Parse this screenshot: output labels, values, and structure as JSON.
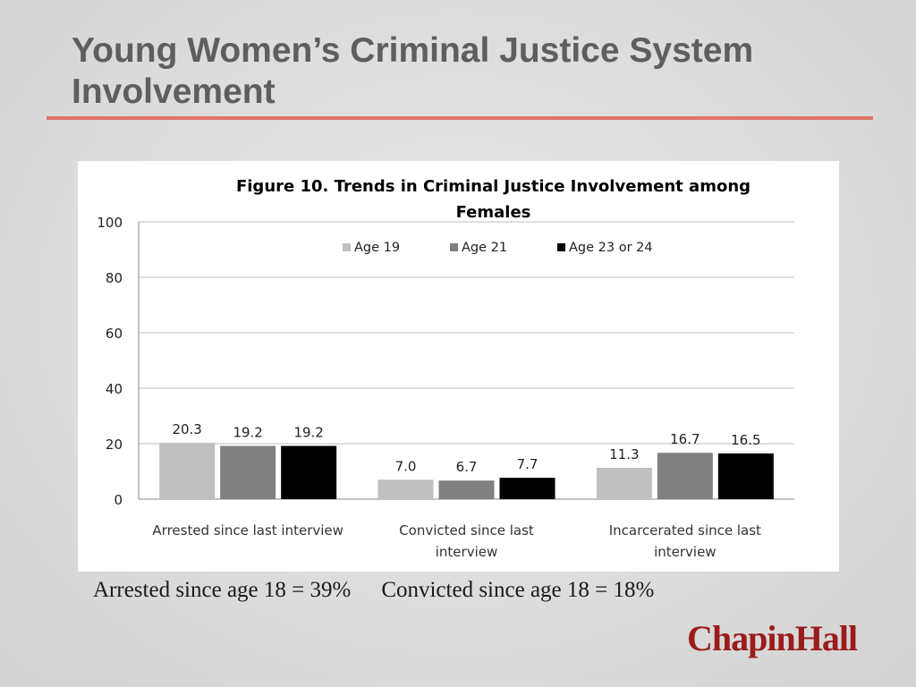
{
  "slide": {
    "title_line1": "Young Women’s Criminal Justice System",
    "title_line2": "Involvement",
    "footnote_arrested": "Arrested since age 18 = 39%",
    "footnote_convicted": "Convicted since age 18 = 18%",
    "logo_text": "ChapinHall"
  },
  "colors": {
    "title_rule": "#e07466",
    "logo": "#9b1c1c"
  },
  "chart_data": {
    "type": "bar",
    "title_lines": [
      "Figure 10. Trends in Criminal Justice Involvement among",
      "Females"
    ],
    "categories": [
      [
        "Arrested since last interview"
      ],
      [
        "Convicted since last",
        "interview"
      ],
      [
        "Incarcerated since last",
        "interview"
      ]
    ],
    "series": [
      {
        "name": "Age 19",
        "color": "#bfbfbf",
        "values": [
          20.3,
          7.0,
          11.3
        ],
        "labels": [
          "20.3",
          "7.0",
          "11.3"
        ]
      },
      {
        "name": "Age 21",
        "color": "#808080",
        "values": [
          19.2,
          6.7,
          16.7
        ],
        "labels": [
          "19.2",
          "6.7",
          "16.7"
        ]
      },
      {
        "name": "Age 23 or 24",
        "color": "#000000",
        "values": [
          19.2,
          7.7,
          16.5
        ],
        "labels": [
          "19.2",
          "7.7",
          "16.5"
        ]
      }
    ],
    "ylim": [
      0,
      100
    ],
    "yticks": [
      "0",
      "20",
      "40",
      "60",
      "80",
      "100"
    ],
    "grid": true,
    "legend_position": "top"
  }
}
